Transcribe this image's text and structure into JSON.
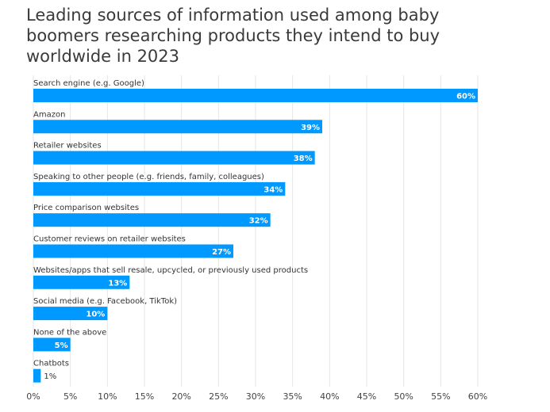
{
  "chart_data": {
    "type": "bar",
    "orientation": "horizontal",
    "title": "Leading sources of information used among baby boomers researching products they intend to buy worldwide in 2023",
    "xlabel": "",
    "ylabel": "",
    "categories": [
      "Search engine (e.g. Google)",
      "Amazon",
      "Retailer websites",
      "Speaking to other people (e.g. friends, family, colleagues)",
      "Price comparison websites",
      "Customer reviews on retailer websites",
      "Websites/apps that sell resale, upcycled, or previously used products",
      "Social media (e.g. Facebook, TikTok)",
      "None of the above",
      "Chatbots"
    ],
    "values": [
      60,
      39,
      38,
      34,
      32,
      27,
      13,
      10,
      5,
      1
    ],
    "value_labels": [
      "60%",
      "39%",
      "38%",
      "34%",
      "32%",
      "27%",
      "13%",
      "10%",
      "5%",
      "1%"
    ],
    "xlim": [
      0,
      60
    ],
    "ticks": [
      0,
      5,
      10,
      15,
      20,
      25,
      30,
      35,
      40,
      45,
      50,
      55,
      60
    ],
    "tick_labels": [
      "0%",
      "5%",
      "10%",
      "15%",
      "20%",
      "25%",
      "30%",
      "35%",
      "40%",
      "45%",
      "50%",
      "55%",
      "60%"
    ],
    "grid": true,
    "legend": "none",
    "bar_color": "#0099ff",
    "grid_color": "#e6e6e6"
  }
}
